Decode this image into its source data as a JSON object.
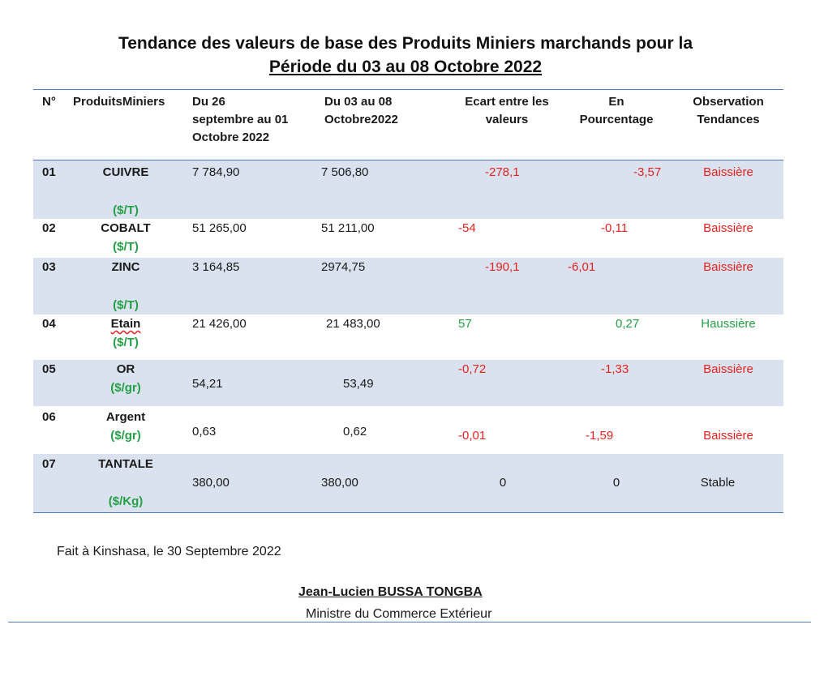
{
  "title": {
    "line1": "Tendance des valeurs de base des Produits Miniers marchands pour la",
    "line2": "Période du 03 au 08 Octobre 2022"
  },
  "headers": {
    "no": "N°",
    "produits": "ProduitsMiniers",
    "prev": [
      "Du 26",
      "septembre au 01",
      "Octobre 2022"
    ],
    "curr": [
      "Du 03  au 08",
      "Octobre2022"
    ],
    "ecart": [
      "Ecart entre les",
      "valeurs"
    ],
    "pct": [
      "En",
      "Pourcentage"
    ],
    "obs": [
      "Observation",
      "Tendances"
    ]
  },
  "rows": [
    {
      "no": "01",
      "name": "CUIVRE",
      "unit": "($/T)",
      "prev": "7 784,90",
      "curr": "7 506,80",
      "ecart": "-278,1",
      "pct": "-3,57",
      "trend": "Baissière"
    },
    {
      "no": "02",
      "name": "COBALT",
      "unit": "($/T)",
      "prev": "51 265,00",
      "curr": "51 211,00",
      "ecart": "-54",
      "pct": "-0,11",
      "trend": "Baissière"
    },
    {
      "no": "03",
      "name": "ZINC",
      "unit": "($/T)",
      "prev": "3 164,85",
      "curr": "2974,75",
      "ecart": "-190,1",
      "pct": "-6,01",
      "trend": "Baissière"
    },
    {
      "no": "04",
      "name": "Etain",
      "unit": "($/T)",
      "prev": "21 426,00",
      "curr": "21 483,00",
      "ecart": "57",
      "pct": "0,27",
      "trend": "Haussière"
    },
    {
      "no": "05",
      "name": "OR",
      "unit": "($/gr)",
      "prev": "54,21",
      "curr": "53,49",
      "ecart": "-0,72",
      "pct": "-1,33",
      "trend": "Baissière"
    },
    {
      "no": "06",
      "name": "Argent",
      "unit": "($/gr)",
      "prev": "0,63",
      "curr": "0,62",
      "ecart": "-0,01",
      "pct": "-1,59",
      "trend": "Baissière"
    },
    {
      "no": "07",
      "name": "TANTALE",
      "unit": "($/Kg)",
      "prev": "380,00",
      "curr": "380,00",
      "ecart": "0",
      "pct": "0",
      "trend": "Stable"
    }
  ],
  "footer": {
    "place_date": "Fait à Kinshasa, le 30  Septembre 2022",
    "signatory": "Jean-Lucien BUSSA TONGBA",
    "role": "Ministre du Commerce Extérieur"
  },
  "colors": {
    "negative": "#e0231f",
    "positive": "#25a046",
    "band": "#d9e2ee",
    "rule": "#4f7bbf"
  }
}
